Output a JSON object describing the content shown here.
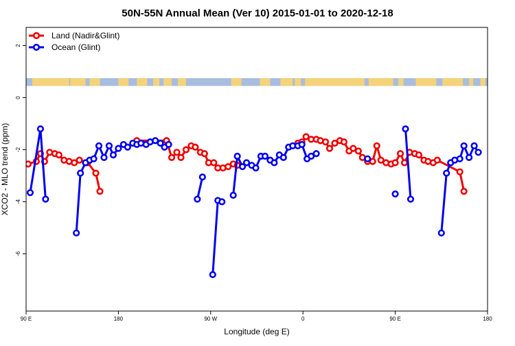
{
  "chart_data": {
    "type": "line",
    "title": "50N-55N Annual Mean (Ver 10)   2015-01-01 to 2020-12-18",
    "xlabel": "Longitude (deg E)",
    "ylabel": "XCO2 - MLO trend (ppm)",
    "xlim": [
      90,
      540
    ],
    "ylim": [
      -8.2,
      2.7
    ],
    "xticks": [
      90,
      180,
      270,
      360,
      450,
      540
    ],
    "xtick_labels": [
      "90 E",
      "180",
      "90 W",
      "0",
      "90 E",
      "180"
    ],
    "yticks": [
      2,
      0,
      -2,
      -4,
      -6
    ],
    "ytick_labels": [
      "2",
      "0",
      "-2",
      "-4",
      "-6"
    ],
    "land_mask_strip": {
      "y_range": [
        0.45,
        0.75
      ],
      "ocean_color": "#a8bde0",
      "land_color": "#f5d37a"
    },
    "legend_position": "top-left",
    "series": [
      {
        "name": "Land (Nadir&Glint)",
        "color": "#ee0000",
        "segments": [
          [
            [
              92,
              -2.55
            ],
            [
              100,
              -2.45
            ],
            [
              104,
              -2.15
            ],
            [
              108,
              -2.45
            ],
            [
              113,
              -2.1
            ],
            [
              118,
              -2.15
            ],
            [
              122,
              -2.2
            ],
            [
              127,
              -2.4
            ],
            [
              132,
              -2.45
            ],
            [
              137,
              -2.5
            ],
            [
              142,
              -2.4
            ],
            [
              150,
              -2.5
            ],
            [
              158,
              -2.9
            ],
            [
              162,
              -3.6
            ]
          ],
          [
            [
              198,
              -1.65
            ],
            [
              227,
              -1.65
            ],
            [
              232,
              -2.3
            ],
            [
              237,
              -2.1
            ],
            [
              241,
              -2.3
            ],
            [
              246,
              -2.0
            ],
            [
              251,
              -1.85
            ],
            [
              255,
              -1.9
            ],
            [
              260,
              -2.1
            ],
            [
              264,
              -2.15
            ],
            [
              268,
              -2.5
            ],
            [
              273,
              -2.5
            ],
            [
              277,
              -2.7
            ],
            [
              282,
              -2.7
            ],
            [
              287,
              -2.65
            ],
            [
              292,
              -2.55
            ],
            [
              296,
              -2.6
            ]
          ],
          [
            [
              355,
              -1.75
            ],
            [
              359,
              -1.7
            ],
            [
              363,
              -1.5
            ],
            [
              368,
              -1.6
            ],
            [
              373,
              -1.6
            ],
            [
              377,
              -1.65
            ],
            [
              382,
              -1.7
            ],
            [
              386,
              -1.95
            ],
            [
              391,
              -1.75
            ],
            [
              396,
              -1.65
            ],
            [
              400,
              -1.7
            ],
            [
              405,
              -2.05
            ],
            [
              409,
              -1.95
            ],
            [
              414,
              -2.05
            ],
            [
              418,
              -2.3
            ],
            [
              423,
              -2.45
            ],
            [
              428,
              -2.45
            ],
            [
              432,
              -1.85
            ],
            [
              436,
              -2.4
            ],
            [
              441,
              -2.5
            ],
            [
              446,
              -2.55
            ],
            [
              450,
              -2.5
            ],
            [
              455,
              -2.15
            ],
            [
              459,
              -2.5
            ],
            [
              464,
              -2.1
            ],
            [
              469,
              -2.15
            ],
            [
              473,
              -2.2
            ],
            [
              478,
              -2.4
            ],
            [
              482,
              -2.45
            ],
            [
              487,
              -2.5
            ],
            [
              491,
              -2.4
            ],
            [
              513,
              -2.85
            ],
            [
              517,
              -3.6
            ]
          ]
        ]
      },
      {
        "name": "Ocean (Glint)",
        "color": "#0000ee",
        "segments": [
          [
            [
              94,
              -3.65
            ],
            [
              104,
              -1.2
            ],
            [
              109,
              -3.9
            ]
          ],
          [
            [
              139,
              -5.2
            ],
            [
              143,
              -2.9
            ],
            [
              148,
              -2.5
            ],
            [
              152,
              -2.4
            ],
            [
              156,
              -2.35
            ],
            [
              161,
              -1.85
            ],
            [
              166,
              -2.3
            ],
            [
              171,
              -1.85
            ],
            [
              175,
              -2.2
            ],
            [
              180,
              -1.95
            ],
            [
              185,
              -1.8
            ],
            [
              189,
              -1.9
            ],
            [
              194,
              -1.75
            ],
            [
              198,
              -1.8
            ],
            [
              202,
              -1.75
            ],
            [
              207,
              -1.8
            ],
            [
              211,
              -1.7
            ],
            [
              216,
              -1.65
            ],
            [
              221,
              -1.75
            ],
            [
              225,
              -1.9
            ],
            [
              229,
              -1.8
            ]
          ],
          [
            [
              257,
              -3.9
            ],
            [
              262,
              -3.05
            ]
          ],
          [
            [
              272,
              -6.8
            ],
            [
              277,
              -3.95
            ],
            [
              281,
              -4.0
            ]
          ],
          [
            [
              292,
              -3.75
            ],
            [
              296,
              -2.25
            ],
            [
              301,
              -2.65
            ],
            [
              305,
              -2.5
            ],
            [
              310,
              -2.6
            ],
            [
              314,
              -2.7
            ],
            [
              319,
              -2.25
            ],
            [
              323,
              -2.25
            ],
            [
              328,
              -2.4
            ],
            [
              332,
              -2.5
            ],
            [
              337,
              -2.2
            ],
            [
              341,
              -2.3
            ],
            [
              346,
              -1.9
            ],
            [
              350,
              -1.85
            ],
            [
              355,
              -1.85
            ],
            [
              359,
              -1.8
            ],
            [
              364,
              -2.35
            ],
            [
              368,
              -2.25
            ],
            [
              373,
              -2.15
            ]
          ],
          [
            [
              423,
              -2.35
            ]
          ],
          [
            [
              450,
              -3.7
            ]
          ],
          [
            [
              460,
              -1.2
            ],
            [
              465,
              -3.9
            ]
          ],
          [
            [
              495,
              -5.2
            ],
            [
              500,
              -2.9
            ],
            [
              504,
              -2.5
            ],
            [
              508,
              -2.4
            ],
            [
              513,
              -2.35
            ],
            [
              517,
              -1.85
            ],
            [
              522,
              -2.3
            ],
            [
              527,
              -1.85
            ],
            [
              531,
              -2.1
            ]
          ]
        ]
      }
    ]
  }
}
